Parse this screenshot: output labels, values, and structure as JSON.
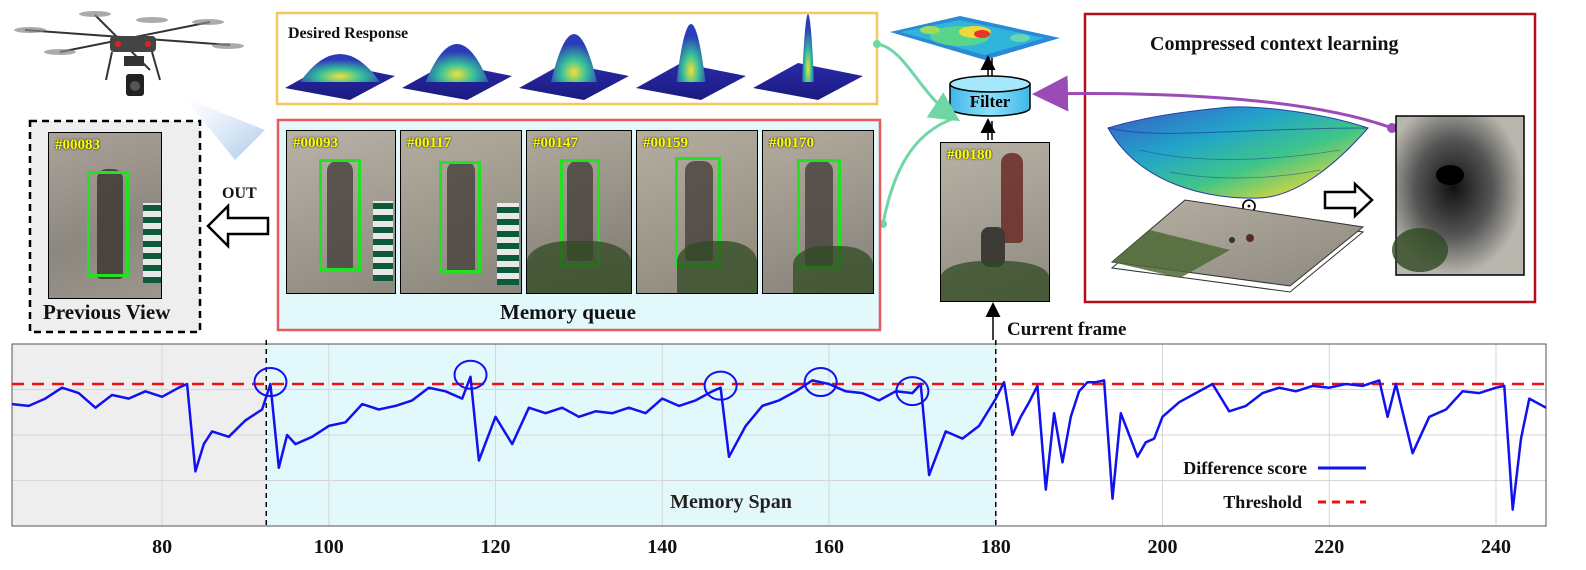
{
  "desired_response": {
    "title": "Desired Response",
    "peak_count": 5
  },
  "previous_view": {
    "caption": "Previous View",
    "frame_label": "#00083",
    "out_label": "OUT"
  },
  "memory_queue": {
    "caption": "Memory queue",
    "frames": [
      {
        "label": "#00093"
      },
      {
        "label": "#00117"
      },
      {
        "label": "#00147"
      },
      {
        "label": "#00159"
      },
      {
        "label": "#00170"
      }
    ]
  },
  "current": {
    "frame_label": "#00180",
    "caption": "Current frame"
  },
  "filter": {
    "label": "Filter"
  },
  "context": {
    "title": "Compressed context learning",
    "operator": "⊙"
  },
  "colors": {
    "memory_box": "#e8595e",
    "desired_box": "#f2c75c",
    "context_box": "#b3101a",
    "series": "#1212ee",
    "threshold": "#ee1111",
    "span_fill": "#e3f8fb",
    "prev_fill": "#eeeeee",
    "filter_fill": "#5ccaf0",
    "green_arrow": "#6fd6a4",
    "purple_arrow": "#9a4bb6",
    "bbox": "#22e022"
  },
  "chart_data": {
    "type": "line",
    "xlabel": "",
    "ylabel": "",
    "xlim": [
      62,
      246
    ],
    "ylim": [
      0,
      1
    ],
    "x_ticks": [
      80,
      100,
      120,
      140,
      160,
      180,
      200,
      220,
      240
    ],
    "series": [
      {
        "name": "Difference score",
        "x": [
          62,
          64,
          66,
          68,
          70,
          72,
          74,
          76,
          78,
          80,
          82,
          83,
          84,
          85,
          86,
          88,
          90,
          92,
          93,
          94,
          95,
          96,
          98,
          100,
          102,
          104,
          106,
          108,
          110,
          112,
          114,
          116,
          117,
          118,
          120,
          122,
          124,
          126,
          128,
          130,
          132,
          134,
          136,
          138,
          140,
          142,
          144,
          146,
          147,
          148,
          150,
          152,
          154,
          156,
          158,
          160,
          162,
          164,
          166,
          168,
          170,
          171,
          172,
          174,
          176,
          178,
          180,
          181,
          182,
          183,
          184,
          185,
          186,
          187,
          188,
          189,
          190,
          191,
          192,
          193,
          194,
          195,
          196,
          197,
          198,
          199,
          200,
          202,
          204,
          206,
          208,
          210,
          212,
          214,
          216,
          218,
          220,
          222,
          224,
          226,
          227,
          228,
          230,
          232,
          234,
          236,
          238,
          240,
          241,
          242,
          243,
          244,
          246
        ],
        "y": [
          0.67,
          0.66,
          0.7,
          0.76,
          0.73,
          0.65,
          0.72,
          0.7,
          0.74,
          0.71,
          0.76,
          0.78,
          0.3,
          0.45,
          0.52,
          0.49,
          0.58,
          0.64,
          0.78,
          0.32,
          0.5,
          0.45,
          0.49,
          0.55,
          0.57,
          0.67,
          0.64,
          0.66,
          0.69,
          0.76,
          0.74,
          0.7,
          0.82,
          0.36,
          0.6,
          0.45,
          0.65,
          0.62,
          0.65,
          0.6,
          0.63,
          0.62,
          0.65,
          0.62,
          0.7,
          0.66,
          0.69,
          0.74,
          0.76,
          0.38,
          0.55,
          0.66,
          0.69,
          0.74,
          0.8,
          0.78,
          0.74,
          0.73,
          0.69,
          0.74,
          0.73,
          0.78,
          0.28,
          0.52,
          0.48,
          0.55,
          0.7,
          0.79,
          0.5,
          0.6,
          0.68,
          0.77,
          0.2,
          0.62,
          0.35,
          0.6,
          0.74,
          0.79,
          0.79,
          0.8,
          0.15,
          0.62,
          0.5,
          0.38,
          0.46,
          0.48,
          0.6,
          0.68,
          0.73,
          0.78,
          0.63,
          0.66,
          0.73,
          0.76,
          0.74,
          0.77,
          0.76,
          0.78,
          0.77,
          0.8,
          0.6,
          0.78,
          0.4,
          0.6,
          0.64,
          0.74,
          0.73,
          0.76,
          0.77,
          0.09,
          0.48,
          0.7,
          0.65
        ],
        "color": "#1212ee"
      },
      {
        "name": "Threshold",
        "y": 0.78,
        "style": "dashed",
        "color": "#ee1111"
      }
    ],
    "annotations": {
      "memory_span_label": "Memory Span",
      "memory_span_range": [
        92.5,
        180
      ],
      "previous_view_range": [
        62,
        92.5
      ],
      "circled_peaks_x": [
        93,
        117,
        147,
        159,
        170
      ]
    },
    "legend": "bottom-right"
  }
}
